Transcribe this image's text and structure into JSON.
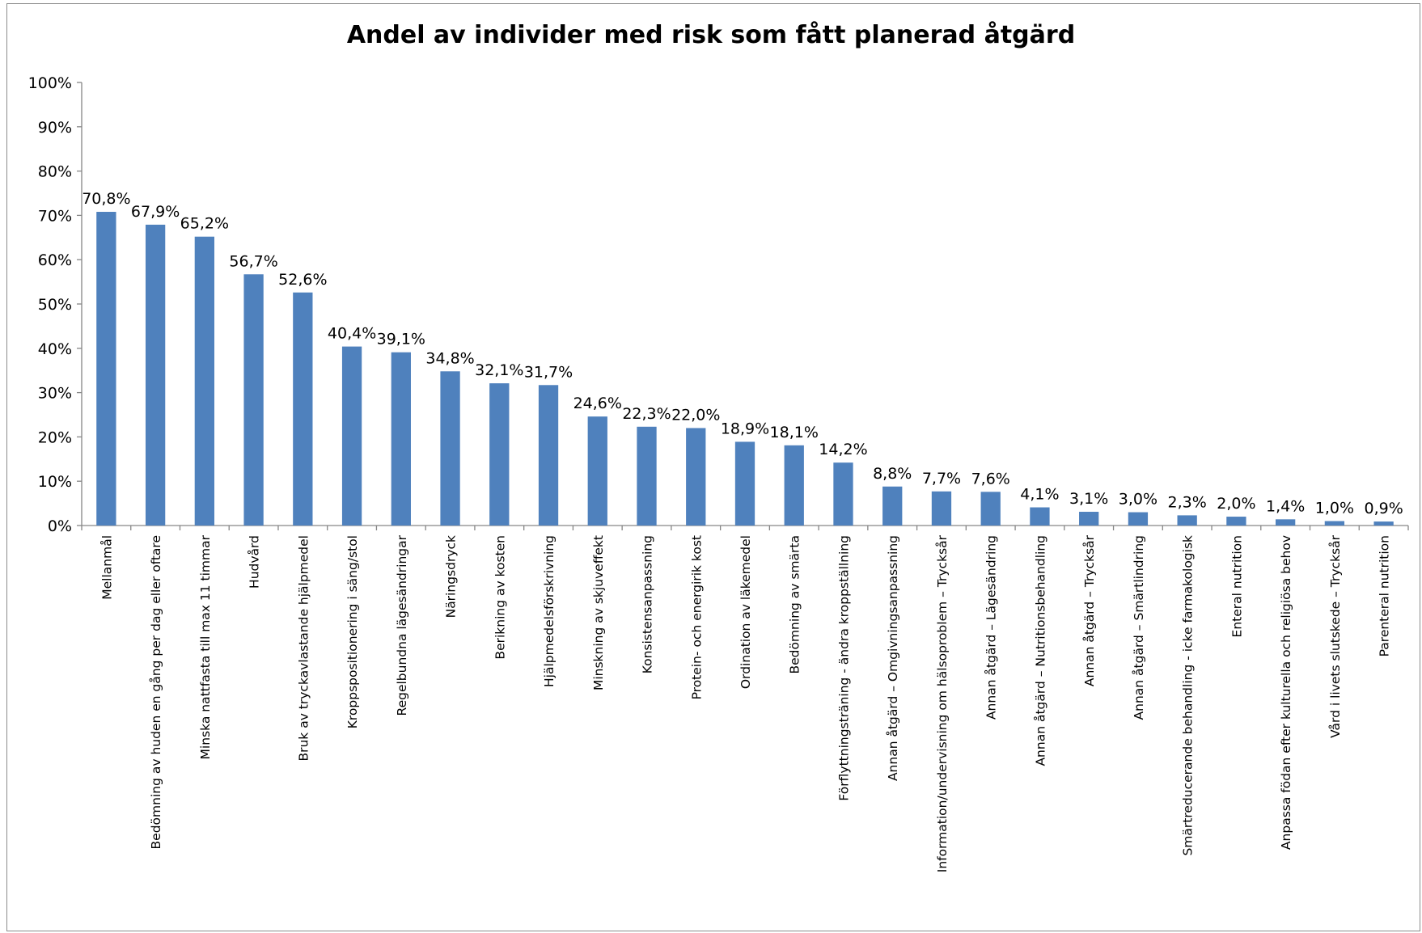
{
  "chart_data": {
    "type": "bar",
    "title": "Andel av individer med risk som fått planerad åtgärd",
    "xlabel": "",
    "ylabel": "",
    "ylim": [
      0,
      100
    ],
    "yticks": [
      "0%",
      "10%",
      "20%",
      "30%",
      "40%",
      "50%",
      "60%",
      "70%",
      "80%",
      "90%",
      "100%"
    ],
    "grid": false,
    "bar_color": "#4F81BD",
    "categories": [
      "Mellanmål",
      "Bedömning av huden en gång per dag eller oftare",
      "Minska nattfasta till max 11 timmar",
      "Hudvård",
      "Bruk av tryckavlastande hjälpmedel",
      "Kroppspositionering i säng/stol",
      "Regelbundna lägesändringar",
      "Näringsdryck",
      "Berikning av kosten",
      "Hjälpmedelsförskrivning",
      "Minskning av skjuveffekt",
      "Konsistensanpassning",
      "Protein- och energirik kost",
      "Ordination av läkemedel",
      "Bedömning av smärta",
      "Förflyttningsträning - ändra kroppställning",
      "Annan åtgärd – Omgivningsanpassning",
      "Information/undervisning om hälsoproblem – Trycksår",
      "Annan åtgärd – Lägesändring",
      "Annan åtgärd – Nutritionsbehandling",
      "Annan åtgärd – Trycksår",
      "Annan åtgärd – Smärtlindring",
      "Smärtreducerande behandling - icke farmakologisk",
      "Enteral nutrition",
      "Anpassa födan efter kulturella och religiösa behov",
      "Vård i livets slutskede – Trycksår",
      "Parenteral nutrition"
    ],
    "values": [
      70.8,
      67.9,
      65.2,
      56.7,
      52.6,
      40.4,
      39.1,
      34.8,
      32.1,
      31.7,
      24.6,
      22.3,
      22.0,
      18.9,
      18.1,
      14.2,
      8.8,
      7.7,
      7.6,
      4.1,
      3.1,
      3.0,
      2.3,
      2.0,
      1.4,
      1.0,
      0.9
    ],
    "data_labels": [
      "70,8%",
      "67,9%",
      "65,2%",
      "56,7%",
      "52,6%",
      "40,4%",
      "39,1%",
      "34,8%",
      "32,1%",
      "31,7%",
      "24,6%",
      "22,3%",
      "22,0%",
      "18,9%",
      "18,1%",
      "14,2%",
      "8,8%",
      "7,7%",
      "7,6%",
      "4,1%",
      "3,1%",
      "3,0%",
      "2,3%",
      "2,0%",
      "1,4%",
      "1,0%",
      "0,9%"
    ]
  }
}
